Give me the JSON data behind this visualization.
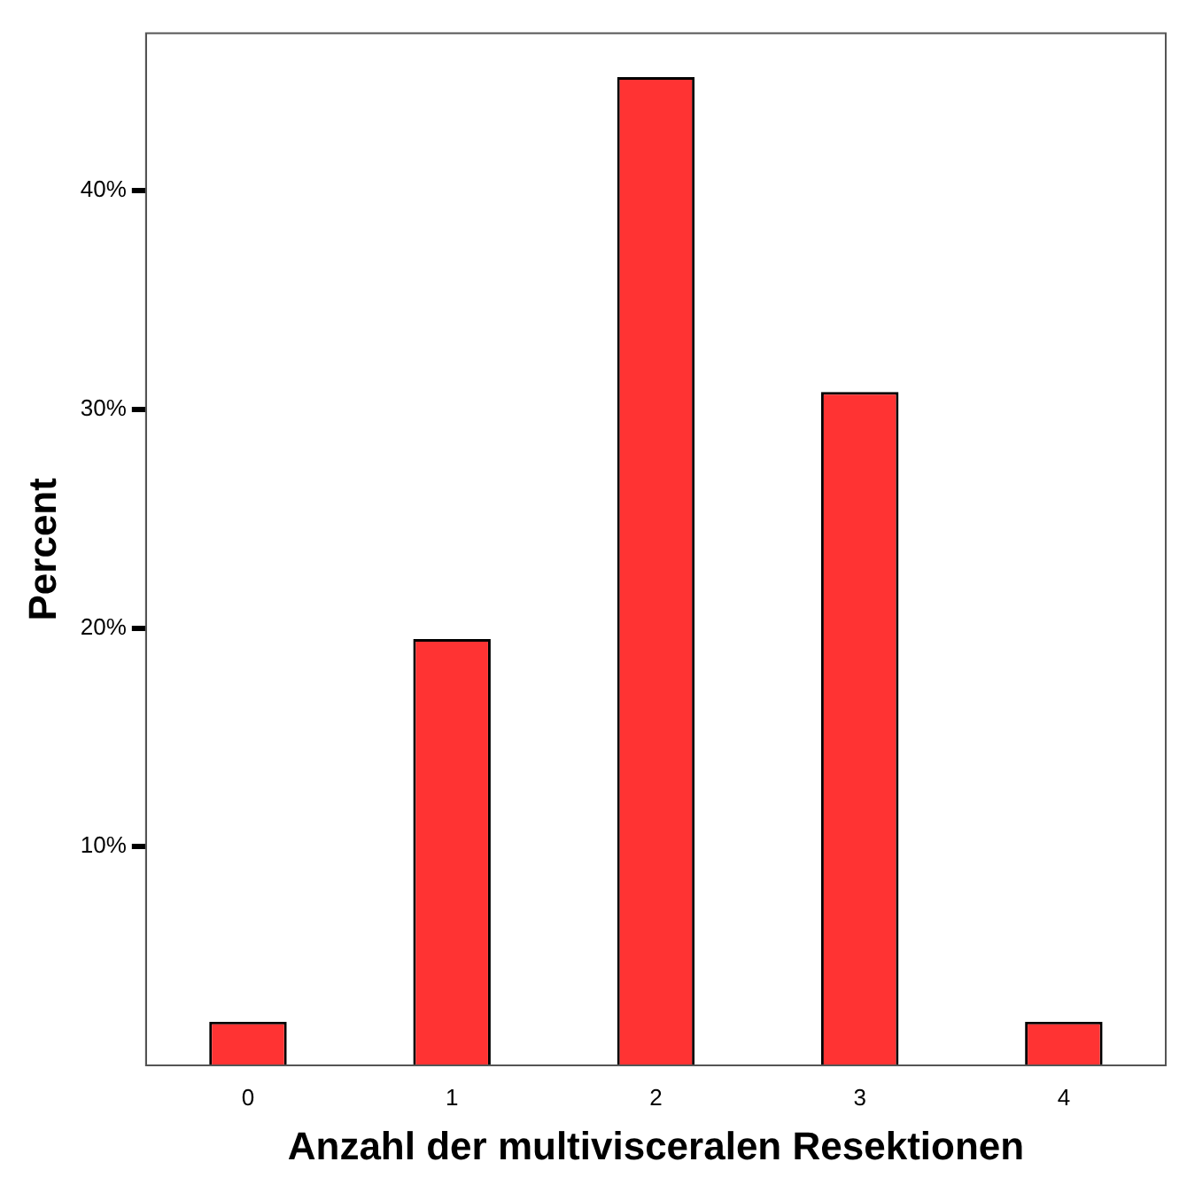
{
  "chart_data": {
    "type": "bar",
    "xlabel": "Anzahl der multivisceralen Resektionen",
    "ylabel": "Percent",
    "categories": [
      "0",
      "1",
      "2",
      "3",
      "4"
    ],
    "series": [
      {
        "color": "#ff3333",
        "values": [
          2.0,
          19.5,
          45.2,
          30.8,
          2.0
        ]
      }
    ],
    "ylim": [
      0,
      47.2
    ],
    "yticks": [
      {
        "value": 10,
        "label": "10%"
      },
      {
        "value": 20,
        "label": "20%"
      },
      {
        "value": 30,
        "label": "30%"
      },
      {
        "value": 40,
        "label": "40%"
      }
    ],
    "grid": false,
    "legend": false
  }
}
